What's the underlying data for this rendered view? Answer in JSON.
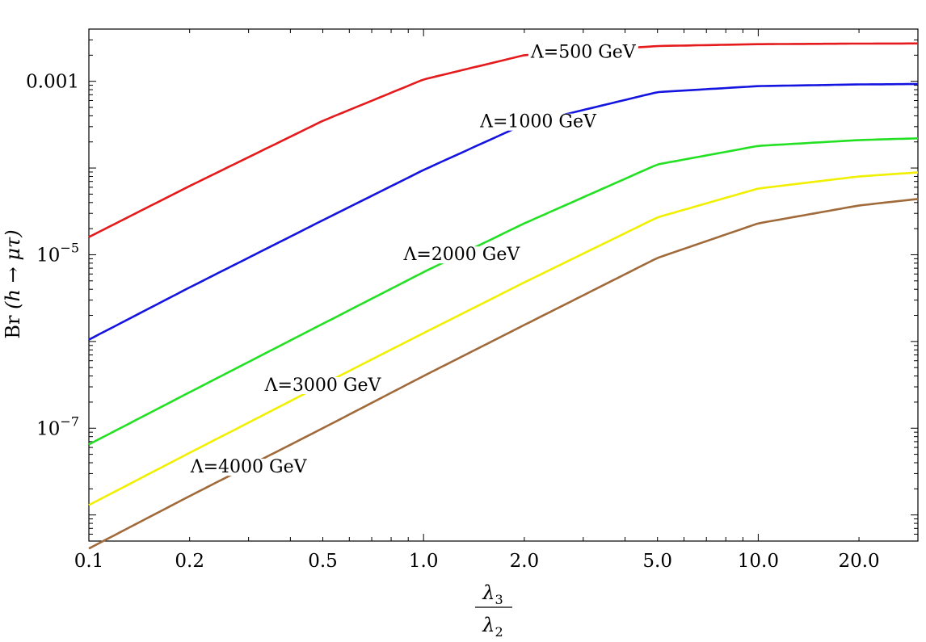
{
  "chart_data": {
    "type": "line",
    "x_scale": "log",
    "y_scale": "log",
    "xlim": [
      0.1,
      30
    ],
    "ylim": [
      5e-09,
      0.004
    ],
    "x_ticks": [
      0.1,
      0.2,
      0.5,
      1.0,
      2.0,
      5.0,
      10.0,
      20.0
    ],
    "x_tick_labels": [
      "0.1",
      "0.2",
      "0.5",
      "1.0",
      "2.0",
      "5.0",
      "10.0",
      "20.0"
    ],
    "y_ticks": [
      0.001,
      1e-05,
      1e-07
    ],
    "y_tick_labels": [
      {
        "base": "0.001",
        "exp": ""
      },
      {
        "base": "10",
        "exp": "−5"
      },
      {
        "base": "10",
        "exp": "−7"
      }
    ],
    "xlabel": {
      "numerator": "λ",
      "numerator_sub": "3",
      "denominator": "λ",
      "denominator_sub": "2"
    },
    "ylabel": {
      "prefix": "Br",
      "arg": "(h → μτ)"
    },
    "grid": false,
    "x": [
      0.1,
      0.2,
      0.5,
      1.0,
      2.0,
      5.0,
      10.0,
      20.0,
      30.0
    ],
    "series": [
      {
        "name": "Λ=500 GeV",
        "color": "#e41a1c",
        "values": [
          1.6e-05,
          6.2e-05,
          0.00035,
          0.00105,
          0.002,
          0.00255,
          0.00268,
          0.00272,
          0.00273
        ],
        "label_at": 3.0
      },
      {
        "name": "Λ=1000 GeV",
        "color": "#1414e0",
        "values": [
          1.05e-06,
          4.2e-06,
          2.5e-05,
          9.5e-05,
          0.00032,
          0.00075,
          0.00088,
          0.00092,
          0.00093
        ],
        "label_at": 2.2
      },
      {
        "name": "Λ=2000 GeV",
        "color": "#22e022",
        "values": [
          6.5e-08,
          2.6e-07,
          1.6e-06,
          6.3e-06,
          2.3e-05,
          0.00011,
          0.00018,
          0.00021,
          0.00022
        ],
        "label_at": 1.3
      },
      {
        "name": "Λ=3000 GeV",
        "color": "#f0f000",
        "values": [
          1.3e-08,
          5.2e-08,
          3.2e-07,
          1.25e-06,
          4.8e-06,
          2.7e-05,
          5.8e-05,
          8e-05,
          8.9e-05
        ],
        "label_at": 0.5
      },
      {
        "name": "Λ=4000 GeV",
        "color": "#a06a3a",
        "values": [
          4.1e-09,
          1.65e-08,
          1e-07,
          4e-07,
          1.55e-06,
          9.2e-06,
          2.3e-05,
          3.7e-05,
          4.4e-05
        ],
        "label_at": 0.3
      }
    ]
  }
}
